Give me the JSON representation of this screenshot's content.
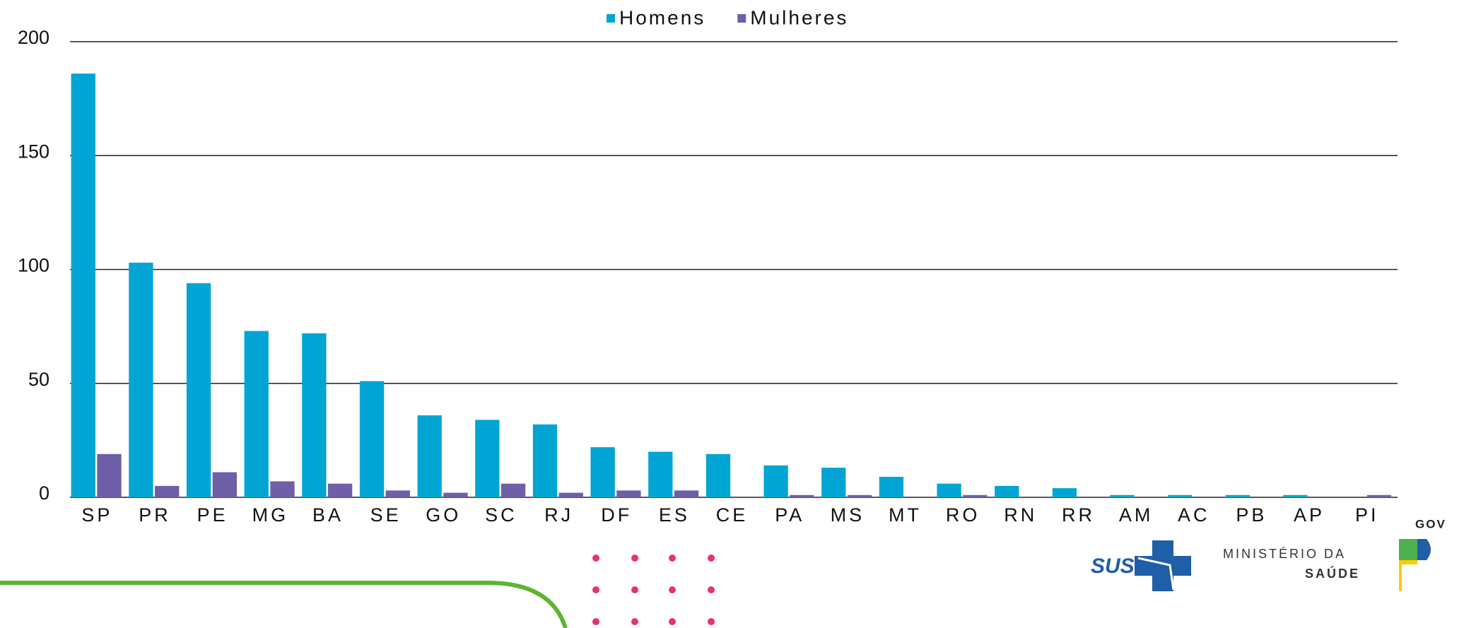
{
  "chart_data": {
    "type": "bar",
    "categories": [
      "SP",
      "PR",
      "PE",
      "MG",
      "BA",
      "SE",
      "GO",
      "SC",
      "RJ",
      "DF",
      "ES",
      "CE",
      "PA",
      "MS",
      "MT",
      "RO",
      "RN",
      "RR",
      "AM",
      "AC",
      "PB",
      "AP",
      "PI"
    ],
    "series": [
      {
        "name": "Homens",
        "color": "#00a5d4",
        "values": [
          186,
          103,
          94,
          73,
          72,
          51,
          36,
          34,
          32,
          22,
          20,
          19,
          14,
          13,
          9,
          6,
          5,
          4,
          1,
          1,
          1,
          1,
          0
        ]
      },
      {
        "name": "Mulheres",
        "color": "#6e5fa8",
        "values": [
          19,
          5,
          11,
          7,
          6,
          3,
          2,
          6,
          2,
          3,
          3,
          0,
          1,
          1,
          0,
          1,
          0,
          0,
          0,
          0,
          0,
          0,
          1
        ]
      }
    ],
    "ylim": [
      0,
      200
    ],
    "yticks": [
      0,
      50,
      100,
      150,
      200
    ],
    "grid": true,
    "legend": "top"
  },
  "footer": {
    "sus": "SUS",
    "ministry": "MINISTÉRIO DA",
    "ministry_bold": "SAÚDE",
    "gov": "GOV"
  }
}
